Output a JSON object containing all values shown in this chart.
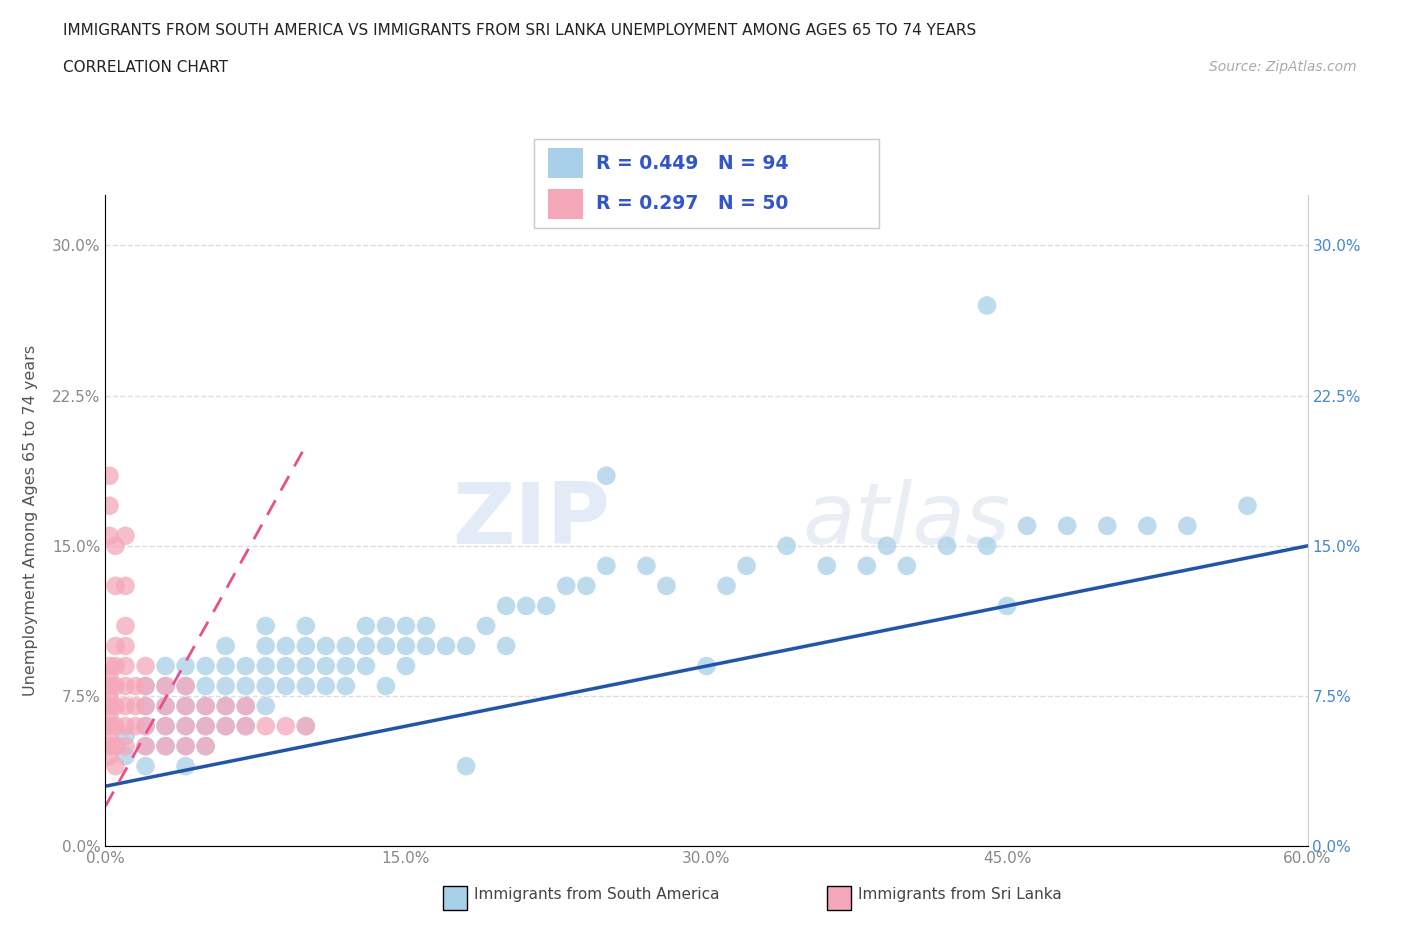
{
  "title_line1": "IMMIGRANTS FROM SOUTH AMERICA VS IMMIGRANTS FROM SRI LANKA UNEMPLOYMENT AMONG AGES 65 TO 74 YEARS",
  "title_line2": "CORRELATION CHART",
  "source_text": "Source: ZipAtlas.com",
  "ylabel": "Unemployment Among Ages 65 to 74 years",
  "xlim": [
    0.0,
    0.6
  ],
  "ylim": [
    0.0,
    0.325
  ],
  "xtick_vals": [
    0.0,
    0.15,
    0.3,
    0.45,
    0.6
  ],
  "xtick_labels": [
    "0.0%",
    "15.0%",
    "30.0%",
    "45.0%",
    "60.0%"
  ],
  "ytick_vals": [
    0.0,
    0.075,
    0.15,
    0.225,
    0.3
  ],
  "ytick_labels": [
    "0.0%",
    "7.5%",
    "15.0%",
    "22.5%",
    "30.0%"
  ],
  "blue_R": 0.449,
  "blue_N": 94,
  "pink_R": 0.297,
  "pink_N": 50,
  "blue_color": "#A8D0E8",
  "pink_color": "#F4A7B9",
  "blue_line_color": "#2255AA",
  "pink_line_color": "#E8508A",
  "legend_text_color": "#3355CC",
  "watermark": "ZIPatlas",
  "blue_scatter_x": [
    0.01,
    0.01,
    0.02,
    0.02,
    0.02,
    0.02,
    0.02,
    0.03,
    0.03,
    0.03,
    0.03,
    0.03,
    0.04,
    0.04,
    0.04,
    0.04,
    0.04,
    0.04,
    0.05,
    0.05,
    0.05,
    0.05,
    0.05,
    0.06,
    0.06,
    0.06,
    0.06,
    0.06,
    0.07,
    0.07,
    0.07,
    0.07,
    0.08,
    0.08,
    0.08,
    0.08,
    0.08,
    0.09,
    0.09,
    0.09,
    0.1,
    0.1,
    0.1,
    0.1,
    0.1,
    0.11,
    0.11,
    0.11,
    0.12,
    0.12,
    0.12,
    0.13,
    0.13,
    0.13,
    0.14,
    0.14,
    0.14,
    0.15,
    0.15,
    0.15,
    0.16,
    0.16,
    0.17,
    0.18,
    0.18,
    0.19,
    0.2,
    0.21,
    0.22,
    0.23,
    0.24,
    0.25,
    0.27,
    0.28,
    0.3,
    0.31,
    0.32,
    0.34,
    0.36,
    0.38,
    0.39,
    0.4,
    0.42,
    0.44,
    0.46,
    0.48,
    0.5,
    0.52,
    0.54,
    0.57,
    0.25,
    0.2,
    0.44,
    0.45
  ],
  "blue_scatter_y": [
    0.045,
    0.055,
    0.04,
    0.05,
    0.06,
    0.07,
    0.08,
    0.05,
    0.06,
    0.07,
    0.08,
    0.09,
    0.04,
    0.05,
    0.06,
    0.07,
    0.08,
    0.09,
    0.05,
    0.06,
    0.07,
    0.08,
    0.09,
    0.06,
    0.07,
    0.08,
    0.09,
    0.1,
    0.06,
    0.07,
    0.08,
    0.09,
    0.07,
    0.08,
    0.09,
    0.1,
    0.11,
    0.08,
    0.09,
    0.1,
    0.06,
    0.08,
    0.09,
    0.1,
    0.11,
    0.08,
    0.09,
    0.1,
    0.08,
    0.09,
    0.1,
    0.09,
    0.1,
    0.11,
    0.08,
    0.1,
    0.11,
    0.09,
    0.1,
    0.11,
    0.1,
    0.11,
    0.1,
    0.1,
    0.04,
    0.11,
    0.12,
    0.12,
    0.12,
    0.13,
    0.13,
    0.14,
    0.14,
    0.13,
    0.09,
    0.13,
    0.14,
    0.15,
    0.14,
    0.14,
    0.15,
    0.14,
    0.15,
    0.15,
    0.16,
    0.16,
    0.16,
    0.16,
    0.16,
    0.17,
    0.185,
    0.1,
    0.27,
    0.12
  ],
  "pink_scatter_x": [
    0.002,
    0.002,
    0.002,
    0.002,
    0.002,
    0.002,
    0.002,
    0.002,
    0.002,
    0.002,
    0.005,
    0.005,
    0.005,
    0.005,
    0.005,
    0.005,
    0.005,
    0.01,
    0.01,
    0.01,
    0.01,
    0.01,
    0.01,
    0.01,
    0.015,
    0.015,
    0.015,
    0.02,
    0.02,
    0.02,
    0.02,
    0.02,
    0.03,
    0.03,
    0.03,
    0.03,
    0.04,
    0.04,
    0.04,
    0.04,
    0.05,
    0.05,
    0.05,
    0.06,
    0.06,
    0.07,
    0.07,
    0.08,
    0.09,
    0.1
  ],
  "pink_scatter_y": [
    0.045,
    0.05,
    0.055,
    0.06,
    0.065,
    0.07,
    0.075,
    0.08,
    0.085,
    0.09,
    0.04,
    0.05,
    0.06,
    0.07,
    0.08,
    0.09,
    0.1,
    0.05,
    0.06,
    0.07,
    0.08,
    0.09,
    0.1,
    0.11,
    0.06,
    0.07,
    0.08,
    0.05,
    0.06,
    0.07,
    0.08,
    0.09,
    0.05,
    0.06,
    0.07,
    0.08,
    0.05,
    0.06,
    0.07,
    0.08,
    0.05,
    0.06,
    0.07,
    0.06,
    0.07,
    0.06,
    0.07,
    0.06,
    0.06,
    0.06
  ],
  "pink_extra_x": [
    0.002,
    0.002,
    0.002,
    0.005,
    0.005,
    0.01,
    0.01
  ],
  "pink_extra_y": [
    0.155,
    0.17,
    0.185,
    0.13,
    0.15,
    0.13,
    0.155
  ],
  "background_color": "#FFFFFF",
  "grid_color": "#DDDDDD",
  "tick_label_color": "#888888",
  "right_tick_color": "#4488CC"
}
